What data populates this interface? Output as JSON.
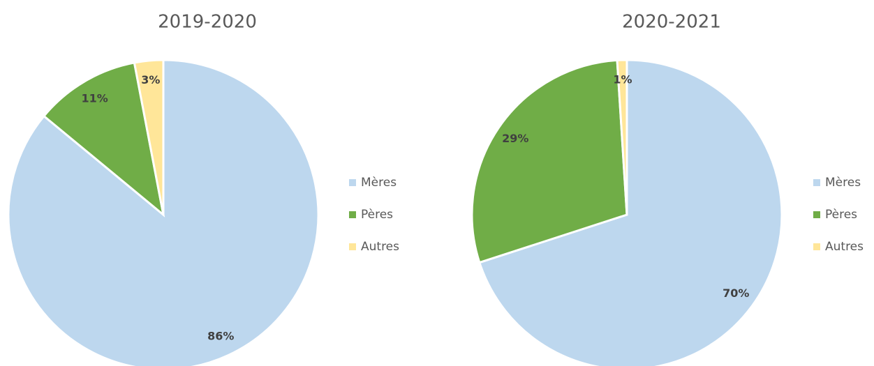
{
  "chart_data": [
    {
      "type": "pie",
      "title": "2019-2020",
      "categories": [
        "Mères",
        "Pères",
        "Autres"
      ],
      "values": [
        86,
        11,
        3
      ],
      "value_labels": [
        "86%",
        "11%",
        "3%"
      ],
      "colors": [
        "#bdd7ee",
        "#70ad47",
        "#ffe699"
      ]
    },
    {
      "type": "pie",
      "title": "2020-2021",
      "categories": [
        "Mères",
        "Pères",
        "Autres"
      ],
      "values": [
        70,
        29,
        1
      ],
      "value_labels": [
        "70%",
        "29%",
        "1%"
      ],
      "colors": [
        "#bdd7ee",
        "#70ad47",
        "#ffe699"
      ]
    }
  ]
}
